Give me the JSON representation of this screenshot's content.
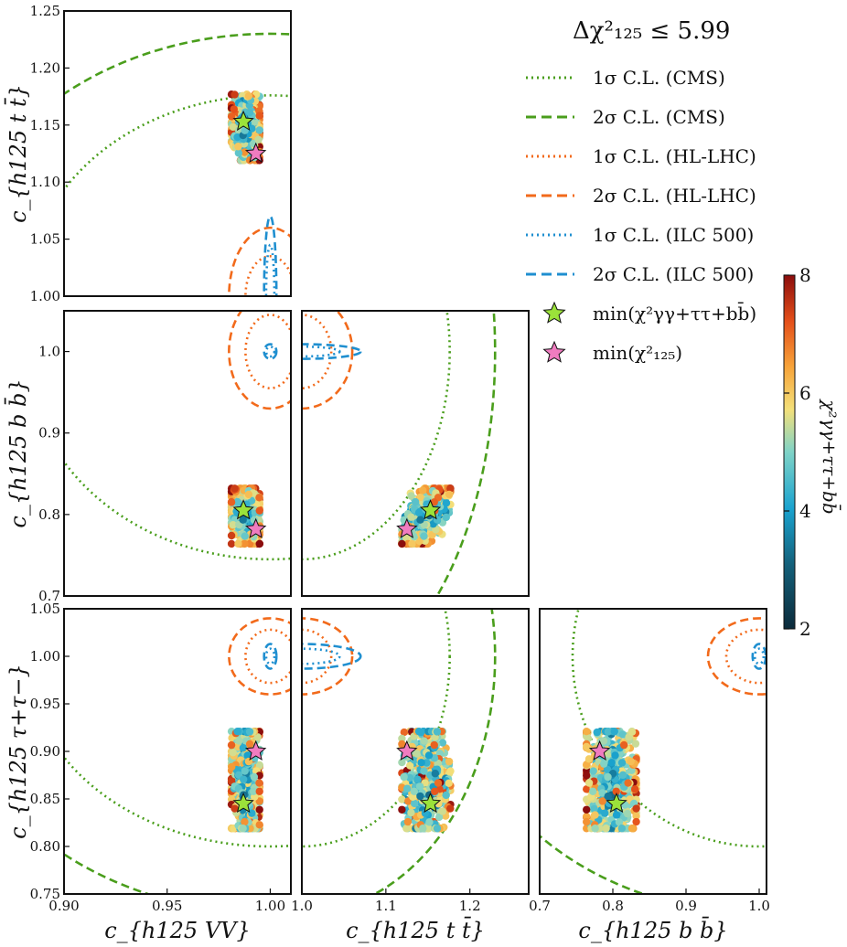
{
  "figure": {
    "legend_title": "Δχ²₁₂₅ ≤ 5.99",
    "legend": [
      {
        "label": "1σ C.L. (CMS)",
        "color": "#4a9e1c",
        "style": "dotted"
      },
      {
        "label": "2σ C.L. (CMS)",
        "color": "#4a9e1c",
        "style": "dashed"
      },
      {
        "label": "1σ C.L. (HL-LHC)",
        "color": "#f26a1b",
        "style": "dotted"
      },
      {
        "label": "2σ C.L. (HL-LHC)",
        "color": "#f26a1b",
        "style": "dashed"
      },
      {
        "label": "1σ C.L. (ILC 500)",
        "color": "#1f8fd0",
        "style": "dotted"
      },
      {
        "label": "2σ C.L. (ILC 500)",
        "color": "#1f8fd0",
        "style": "dashed"
      },
      {
        "label": "min(χ²γγ+ττ+bb̄)",
        "color": "#9be23a",
        "marker": "star"
      },
      {
        "label": "min(χ²₁₂₅)",
        "color": "#f07cc0",
        "marker": "star"
      }
    ],
    "colorbar": {
      "label": "χ²γγ+ττ+bb̄",
      "min": 2,
      "max": 8,
      "ticks": [
        "2",
        "4",
        "6",
        "8"
      ]
    }
  },
  "chart_data": [
    {
      "type": "scatter",
      "panel": "VV-tt",
      "x_key": "cVV",
      "y_key": "ctt",
      "xlim": [
        0.9,
        1.01
      ],
      "ylim": [
        1.0,
        1.25
      ],
      "ylabel": "c_{h125 t t̄}",
      "xlabel": "",
      "yticks": [
        1.0,
        1.05,
        1.1,
        1.15,
        1.2,
        1.25
      ],
      "ytick_labels": [
        "1.00",
        "1.05",
        "1.10",
        "1.15",
        "1.20",
        "1.25"
      ],
      "xticks": [],
      "xtick_labels": []
    },
    {
      "type": "scatter",
      "panel": "VV-bb",
      "x_key": "cVV",
      "y_key": "cbb",
      "xlim": [
        0.9,
        1.01
      ],
      "ylim": [
        0.7,
        1.05
      ],
      "ylabel": "c_{h125 b b̄}",
      "xlabel": "",
      "yticks": [
        0.7,
        0.8,
        0.9,
        1.0
      ],
      "ytick_labels": [
        "0.7",
        "0.8",
        "0.9",
        "1.0"
      ],
      "xticks": [],
      "xtick_labels": []
    },
    {
      "type": "scatter",
      "panel": "tt-bb",
      "x_key": "ctt",
      "y_key": "cbb",
      "xlim": [
        1.0,
        1.27
      ],
      "ylim": [
        0.7,
        1.05
      ],
      "ylabel": "",
      "xlabel": "",
      "yticks": [],
      "ytick_labels": [],
      "xticks": [],
      "xtick_labels": []
    },
    {
      "type": "scatter",
      "panel": "VV-tau",
      "x_key": "cVV",
      "y_key": "ctau",
      "xlim": [
        0.9,
        1.01
      ],
      "ylim": [
        0.75,
        1.05
      ],
      "ylabel": "c_{h125 τ+τ−}",
      "xlabel": "c_{h125 VV}",
      "yticks": [
        0.75,
        0.8,
        0.85,
        0.9,
        0.95,
        1.0,
        1.05
      ],
      "ytick_labels": [
        "0.75",
        "0.80",
        "0.85",
        "0.90",
        "0.95",
        "1.00",
        "1.05"
      ],
      "xticks": [
        0.9,
        0.95,
        1.0
      ],
      "xtick_labels": [
        "0.90",
        "0.95",
        "1.00"
      ]
    },
    {
      "type": "scatter",
      "panel": "tt-tau",
      "x_key": "ctt",
      "y_key": "ctau",
      "xlim": [
        1.0,
        1.27
      ],
      "ylim": [
        0.75,
        1.05
      ],
      "ylabel": "",
      "xlabel": "c_{h125 t t̄}",
      "yticks": [],
      "ytick_labels": [],
      "xticks": [
        1.0,
        1.1,
        1.2
      ],
      "xtick_labels": [
        "1.0",
        "1.1",
        "1.2"
      ]
    },
    {
      "type": "scatter",
      "panel": "bb-tau",
      "x_key": "cbb",
      "y_key": "ctau",
      "xlim": [
        0.7,
        1.01
      ],
      "ylim": [
        0.75,
        1.05
      ],
      "ylabel": "",
      "xlabel": "c_{h125 b b̄}",
      "yticks": [],
      "ytick_labels": [],
      "xticks": [
        0.7,
        0.8,
        0.9,
        1.0
      ],
      "xtick_labels": [
        "0.7",
        "0.8",
        "0.9",
        "1.0"
      ]
    }
  ],
  "contours": {
    "CMS": {
      "color": "#4a9e1c",
      "center": {
        "cVV": 1.0,
        "ctt": 1.0,
        "cbb": 1.0,
        "ctau": 1.0
      },
      "sigma1": {
        "cVV": 0.118,
        "ctt": 0.176,
        "cbb": 0.255,
        "ctau": 0.2
      },
      "sigma2": {
        "cVV": 0.157,
        "ctt": 0.23,
        "cbb": 0.42,
        "ctau": 0.27
      }
    },
    "HL-LHC": {
      "color": "#f26a1b",
      "center": {
        "cVV": 1.0,
        "ctt": 1.0,
        "cbb": 1.0,
        "ctau": 1.0
      },
      "sigma1": {
        "cVV": 0.012,
        "ctt": 0.035,
        "cbb": 0.045,
        "ctau": 0.028
      },
      "sigma2": {
        "cVV": 0.02,
        "ctt": 0.06,
        "cbb": 0.07,
        "ctau": 0.04
      }
    },
    "ILC 500": {
      "color": "#1f8fd0",
      "center": {
        "cVV": 1.0,
        "ctt": 1.0,
        "cbb": 1.0,
        "ctau": 1.0
      },
      "sigma1": {
        "cVV": 0.002,
        "ctt": 0.045,
        "cbb": 0.006,
        "ctau": 0.008
      },
      "sigma2": {
        "cVV": 0.003,
        "ctt": 0.07,
        "cbb": 0.009,
        "ctau": 0.013
      }
    }
  },
  "scan_region": {
    "center": {
      "cVV": 0.988,
      "ctt": 1.148,
      "cbb": 0.798,
      "ctau": 0.87
    },
    "spread": {
      "cVV": 0.004,
      "ctt": 0.017,
      "cbb": 0.02,
      "ctau": 0.03
    },
    "chi2_range": [
      2,
      8
    ],
    "n_points": 520
  },
  "best_points": {
    "min_chi2_fit": {
      "cVV": 0.987,
      "ctt": 1.153,
      "cbb": 0.805,
      "ctau": 0.845,
      "color": "#9be23a"
    },
    "min_chi2_125": {
      "cVV": 0.993,
      "ctt": 1.125,
      "cbb": 0.782,
      "ctau": 0.9,
      "color": "#f07cc0"
    }
  }
}
